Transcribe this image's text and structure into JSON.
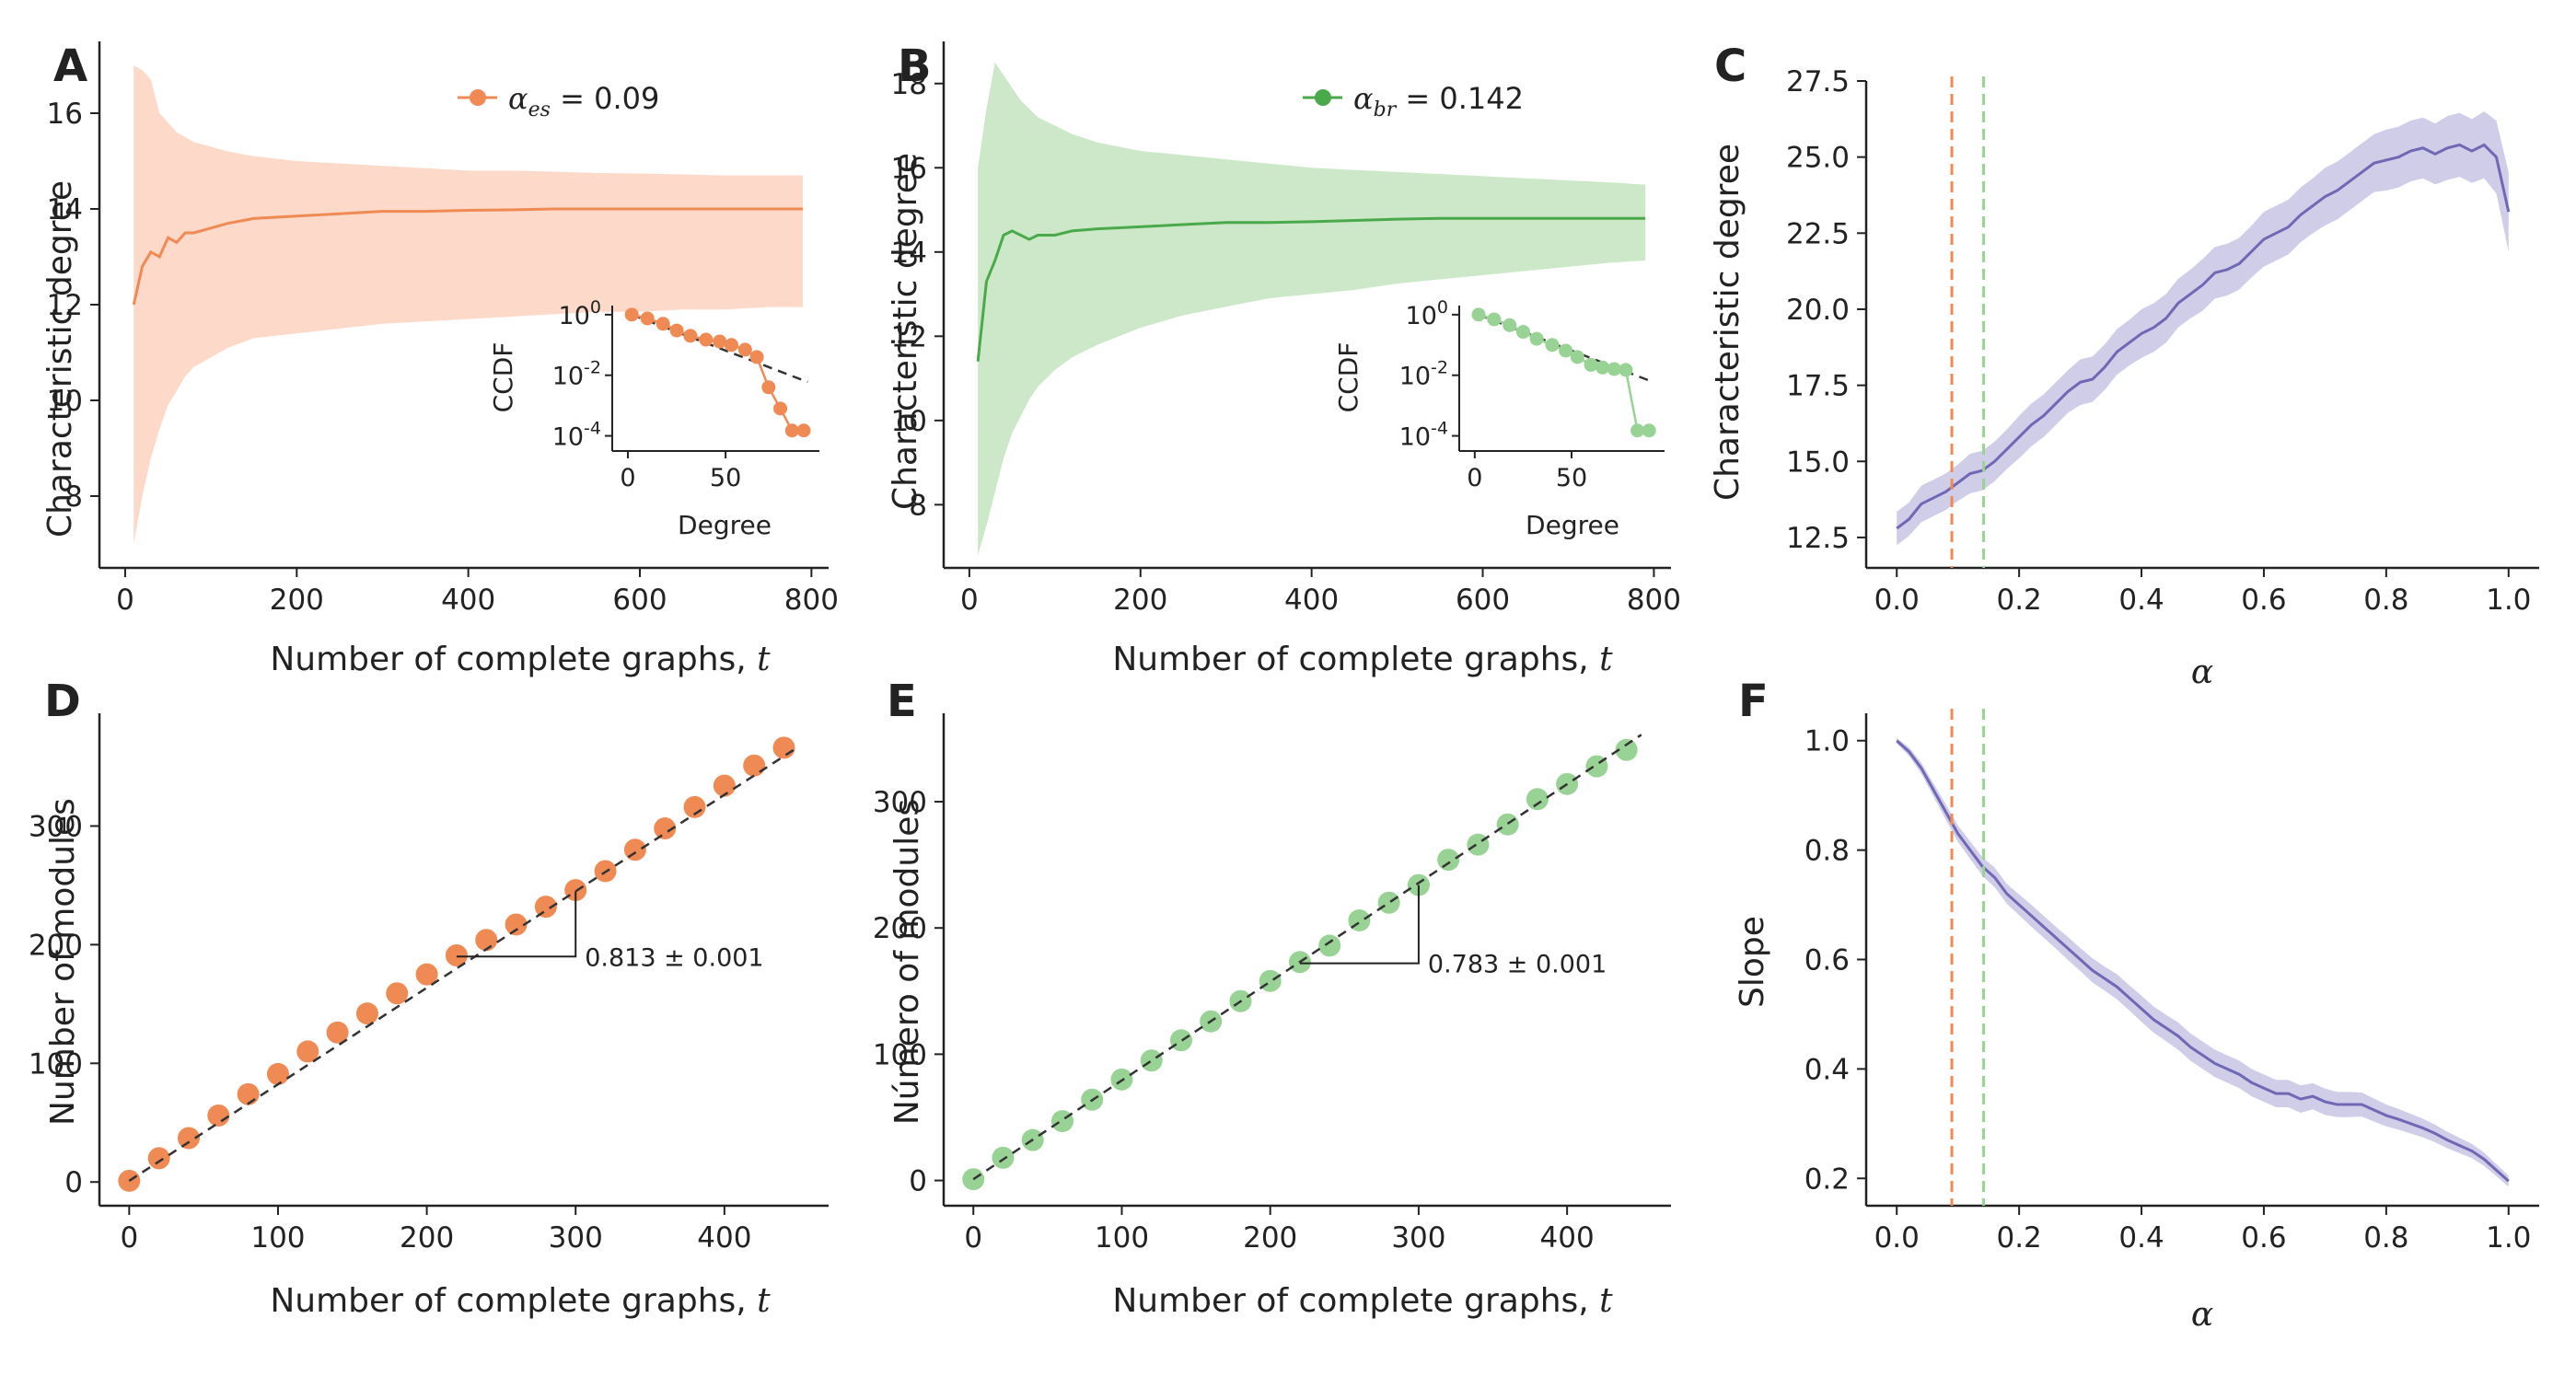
{
  "colors": {
    "orange": "#f08a55",
    "orange_band": "#fcd9c8",
    "green": "#4aa94a",
    "green_band": "#cde8c9",
    "green_light": "#98d294",
    "purple": "#7067b5",
    "purple_band": "#cfcde8",
    "axis": "#222222",
    "fit_line": "#333333"
  },
  "panels": {
    "A": {
      "letter": "A",
      "ylabel": "Characteristic degree",
      "xlabel_text": "Number of complete graphs, ",
      "xlabel_var": "t",
      "legend_symbol": "α",
      "legend_subscript": "es",
      "legend_value": " = 0.09",
      "inset": {
        "ylabel": "CCDF",
        "xlabel": "Degree"
      }
    },
    "B": {
      "letter": "B",
      "ylabel": "Characteristic degree",
      "xlabel_text": "Number of complete graphs, ",
      "xlabel_var": "t",
      "legend_symbol": "α",
      "legend_subscript": "br",
      "legend_value": " = 0.142",
      "inset": {
        "ylabel": "CCDF",
        "xlabel": "Degree"
      }
    },
    "C": {
      "letter": "C",
      "ylabel": "Characteristic degree",
      "xlabel": "α"
    },
    "D": {
      "letter": "D",
      "ylabel": "Number of modules",
      "xlabel_text": "Number of complete graphs, ",
      "xlabel_var": "t",
      "slope_label": "0.813 ± 0.001"
    },
    "E": {
      "letter": "E",
      "ylabel": "Número of modules",
      "xlabel_text": "Number of complete graphs, ",
      "xlabel_var": "t",
      "slope_label": "0.783 ± 0.001"
    },
    "F": {
      "letter": "F",
      "ylabel": "Slope",
      "xlabel": "α"
    }
  },
  "chart_data": [
    {
      "panel": "A",
      "type": "line",
      "xlim": [
        -30,
        820
      ],
      "ylim": [
        6.5,
        17.5
      ],
      "xticks": [
        0,
        200,
        400,
        600,
        800
      ],
      "yticks": [
        8,
        10,
        12,
        14,
        16
      ],
      "series": [
        {
          "name": "α_es = 0.09",
          "x": [
            10,
            20,
            30,
            40,
            50,
            60,
            70,
            80,
            100,
            120,
            150,
            200,
            250,
            300,
            350,
            400,
            450,
            500,
            550,
            600,
            650,
            700,
            750,
            790
          ],
          "y": [
            12.0,
            12.8,
            13.1,
            13.0,
            13.4,
            13.3,
            13.5,
            13.5,
            13.6,
            13.7,
            13.8,
            13.85,
            13.9,
            13.95,
            13.95,
            13.97,
            13.98,
            14.0,
            14.0,
            14.0,
            14.0,
            14.0,
            14.0,
            14.0
          ],
          "lower": [
            7.0,
            8.0,
            8.8,
            9.4,
            9.9,
            10.2,
            10.5,
            10.7,
            10.9,
            11.1,
            11.3,
            11.4,
            11.5,
            11.6,
            11.65,
            11.7,
            11.75,
            11.8,
            11.85,
            11.85,
            11.9,
            11.9,
            11.95,
            11.95
          ],
          "upper": [
            17.0,
            16.9,
            16.7,
            16.0,
            15.8,
            15.6,
            15.5,
            15.4,
            15.3,
            15.2,
            15.1,
            15.0,
            14.95,
            14.9,
            14.85,
            14.8,
            14.8,
            14.78,
            14.75,
            14.74,
            14.72,
            14.7,
            14.7,
            14.7
          ]
        }
      ],
      "inset": {
        "type": "scatter",
        "yscale": "log",
        "xticks": [
          0,
          50
        ],
        "ytick_labels": [
          "10^0",
          "10^-2",
          "10^-4"
        ],
        "x": [
          2,
          10,
          18,
          25,
          32,
          40,
          47,
          53,
          60,
          66,
          72,
          78,
          84,
          90
        ],
        "y": [
          1.0,
          0.75,
          0.5,
          0.3,
          0.2,
          0.15,
          0.13,
          0.1,
          0.07,
          0.04,
          0.004,
          0.0008,
          0.00015,
          0.00015
        ],
        "fit": {
          "x": [
            2,
            92
          ],
          "y": [
            1.0,
            0.006
          ]
        }
      }
    },
    {
      "panel": "B",
      "type": "line",
      "xlim": [
        -30,
        820
      ],
      "ylim": [
        6.5,
        19.0
      ],
      "xticks": [
        0,
        200,
        400,
        600,
        800
      ],
      "yticks": [
        8,
        10,
        12,
        14,
        16,
        18
      ],
      "series": [
        {
          "name": "α_br = 0.142",
          "x": [
            10,
            20,
            30,
            40,
            50,
            60,
            70,
            80,
            100,
            120,
            150,
            200,
            250,
            300,
            350,
            400,
            450,
            500,
            550,
            600,
            650,
            700,
            750,
            790
          ],
          "y": [
            11.4,
            13.3,
            13.8,
            14.4,
            14.5,
            14.4,
            14.3,
            14.4,
            14.4,
            14.5,
            14.55,
            14.6,
            14.65,
            14.7,
            14.7,
            14.72,
            14.75,
            14.78,
            14.8,
            14.8,
            14.8,
            14.8,
            14.8,
            14.8
          ],
          "lower": [
            6.8,
            7.5,
            8.3,
            9.1,
            9.7,
            10.1,
            10.5,
            10.8,
            11.2,
            11.5,
            11.8,
            12.2,
            12.5,
            12.7,
            12.9,
            13.0,
            13.1,
            13.25,
            13.35,
            13.45,
            13.55,
            13.65,
            13.75,
            13.8
          ],
          "upper": [
            16.0,
            17.4,
            18.5,
            18.2,
            17.9,
            17.6,
            17.4,
            17.2,
            17.0,
            16.8,
            16.6,
            16.4,
            16.3,
            16.2,
            16.1,
            16.0,
            15.95,
            15.9,
            15.85,
            15.8,
            15.75,
            15.7,
            15.65,
            15.6
          ]
        }
      ],
      "inset": {
        "type": "scatter",
        "yscale": "log",
        "xticks": [
          0,
          50
        ],
        "ytick_labels": [
          "10^0",
          "10^-2",
          "10^-4"
        ],
        "x": [
          2,
          10,
          18,
          25,
          32,
          40,
          47,
          53,
          60,
          66,
          72,
          78,
          84,
          90
        ],
        "y": [
          1.0,
          0.7,
          0.45,
          0.27,
          0.16,
          0.1,
          0.065,
          0.04,
          0.022,
          0.018,
          0.016,
          0.015,
          0.00015,
          0.00015
        ],
        "fit": {
          "x": [
            2,
            92
          ],
          "y": [
            1.0,
            0.006
          ]
        }
      }
    },
    {
      "panel": "C",
      "type": "line",
      "xlim": [
        -0.05,
        1.05
      ],
      "ylim": [
        11.5,
        27.5
      ],
      "xticks": [
        0.0,
        0.2,
        0.4,
        0.6,
        0.8,
        1.0
      ],
      "yticks": [
        12.5,
        15.0,
        17.5,
        20.0,
        22.5,
        25.0,
        27.5
      ],
      "vlines": [
        {
          "x": 0.09,
          "color": "orange"
        },
        {
          "x": 0.142,
          "color": "green"
        }
      ],
      "series": [
        {
          "x": [
            0.0,
            0.02,
            0.04,
            0.06,
            0.08,
            0.1,
            0.12,
            0.14,
            0.16,
            0.18,
            0.2,
            0.22,
            0.24,
            0.26,
            0.28,
            0.3,
            0.32,
            0.34,
            0.36,
            0.38,
            0.4,
            0.42,
            0.44,
            0.46,
            0.48,
            0.5,
            0.52,
            0.54,
            0.56,
            0.58,
            0.6,
            0.62,
            0.64,
            0.66,
            0.68,
            0.7,
            0.72,
            0.74,
            0.76,
            0.78,
            0.8,
            0.82,
            0.84,
            0.86,
            0.88,
            0.9,
            0.92,
            0.94,
            0.96,
            0.98,
            1.0
          ],
          "y": [
            12.8,
            13.1,
            13.6,
            13.8,
            14.0,
            14.3,
            14.6,
            14.7,
            15.0,
            15.4,
            15.8,
            16.2,
            16.5,
            16.9,
            17.3,
            17.6,
            17.7,
            18.1,
            18.6,
            18.9,
            19.2,
            19.4,
            19.7,
            20.2,
            20.5,
            20.8,
            21.2,
            21.3,
            21.5,
            21.9,
            22.3,
            22.5,
            22.7,
            23.1,
            23.4,
            23.7,
            23.9,
            24.2,
            24.5,
            24.8,
            24.9,
            25.0,
            25.2,
            25.3,
            25.1,
            25.3,
            25.4,
            25.2,
            25.4,
            25.0,
            23.2
          ],
          "band_halfwidth": [
            0.55,
            0.55,
            0.6,
            0.6,
            0.6,
            0.6,
            0.65,
            0.65,
            0.65,
            0.65,
            0.7,
            0.7,
            0.7,
            0.7,
            0.7,
            0.75,
            0.75,
            0.75,
            0.75,
            0.75,
            0.8,
            0.8,
            0.8,
            0.8,
            0.8,
            0.85,
            0.85,
            0.85,
            0.85,
            0.85,
            0.9,
            0.9,
            0.9,
            0.9,
            0.9,
            0.95,
            0.95,
            0.95,
            0.95,
            0.95,
            1.0,
            1.0,
            1.0,
            1.0,
            1.0,
            1.05,
            1.05,
            1.05,
            1.1,
            1.2,
            1.3
          ]
        }
      ]
    },
    {
      "panel": "D",
      "type": "scatter",
      "xlim": [
        -20,
        470
      ],
      "ylim": [
        -20,
        395
      ],
      "xticks": [
        0,
        100,
        200,
        300,
        400
      ],
      "yticks": [
        0,
        100,
        200,
        300
      ],
      "fit": {
        "x": [
          0,
          450
        ],
        "y": [
          1,
          367
        ]
      },
      "slope_triangle": {
        "x0": 220,
        "x1": 300,
        "y0": 190,
        "y1": 245
      },
      "series": [
        {
          "x": [
            0,
            20,
            40,
            60,
            80,
            100,
            120,
            140,
            160,
            180,
            200,
            220,
            240,
            260,
            280,
            300,
            320,
            340,
            360,
            380,
            400,
            420,
            440
          ],
          "y": [
            1,
            20,
            37,
            56,
            74,
            91,
            110,
            126,
            142,
            159,
            175,
            191,
            204,
            217,
            232,
            246,
            262,
            280,
            298,
            316,
            334,
            351,
            366
          ]
        }
      ]
    },
    {
      "panel": "E",
      "type": "scatter",
      "xlim": [
        -20,
        470
      ],
      "ylim": [
        -20,
        370
      ],
      "xticks": [
        0,
        100,
        200,
        300,
        400
      ],
      "yticks": [
        0,
        100,
        200,
        300
      ],
      "fit": {
        "x": [
          0,
          450
        ],
        "y": [
          1,
          353
        ]
      },
      "slope_triangle": {
        "x0": 220,
        "x1": 300,
        "y0": 172,
        "y1": 234
      },
      "series": [
        {
          "x": [
            0,
            20,
            40,
            60,
            80,
            100,
            120,
            140,
            160,
            180,
            200,
            220,
            240,
            260,
            280,
            300,
            320,
            340,
            360,
            380,
            400,
            420,
            440
          ],
          "y": [
            1,
            18,
            32,
            47,
            64,
            80,
            95,
            111,
            126,
            142,
            158,
            173,
            186,
            206,
            220,
            234,
            254,
            266,
            282,
            302,
            314,
            328,
            341
          ]
        }
      ]
    },
    {
      "panel": "F",
      "type": "line",
      "xlim": [
        -0.05,
        1.05
      ],
      "ylim": [
        0.15,
        1.05
      ],
      "xticks": [
        0.0,
        0.2,
        0.4,
        0.6,
        0.8,
        1.0
      ],
      "yticks": [
        0.2,
        0.4,
        0.6,
        0.8,
        1.0
      ],
      "vlines": [
        {
          "x": 0.09,
          "color": "orange"
        },
        {
          "x": 0.142,
          "color": "green"
        }
      ],
      "series": [
        {
          "x": [
            0.0,
            0.02,
            0.04,
            0.06,
            0.08,
            0.1,
            0.12,
            0.14,
            0.16,
            0.18,
            0.2,
            0.22,
            0.24,
            0.26,
            0.28,
            0.3,
            0.32,
            0.34,
            0.36,
            0.38,
            0.4,
            0.42,
            0.44,
            0.46,
            0.48,
            0.5,
            0.52,
            0.54,
            0.56,
            0.58,
            0.6,
            0.62,
            0.64,
            0.66,
            0.68,
            0.7,
            0.72,
            0.74,
            0.76,
            0.78,
            0.8,
            0.82,
            0.84,
            0.86,
            0.88,
            0.9,
            0.92,
            0.94,
            0.96,
            0.98,
            1.0
          ],
          "y": [
            1.0,
            0.98,
            0.95,
            0.91,
            0.87,
            0.83,
            0.8,
            0.77,
            0.75,
            0.72,
            0.7,
            0.68,
            0.66,
            0.64,
            0.62,
            0.6,
            0.58,
            0.565,
            0.55,
            0.53,
            0.51,
            0.49,
            0.475,
            0.46,
            0.44,
            0.425,
            0.41,
            0.4,
            0.39,
            0.375,
            0.365,
            0.355,
            0.355,
            0.345,
            0.35,
            0.34,
            0.335,
            0.335,
            0.335,
            0.325,
            0.315,
            0.308,
            0.3,
            0.292,
            0.282,
            0.27,
            0.26,
            0.25,
            0.235,
            0.215,
            0.195
          ],
          "band_halfwidth": [
            0.005,
            0.008,
            0.01,
            0.012,
            0.014,
            0.015,
            0.016,
            0.017,
            0.018,
            0.018,
            0.019,
            0.02,
            0.02,
            0.02,
            0.021,
            0.021,
            0.022,
            0.022,
            0.023,
            0.023,
            0.024,
            0.024,
            0.024,
            0.025,
            0.025,
            0.025,
            0.025,
            0.025,
            0.025,
            0.025,
            0.025,
            0.025,
            0.025,
            0.025,
            0.024,
            0.024,
            0.023,
            0.023,
            0.022,
            0.021,
            0.02,
            0.019,
            0.018,
            0.017,
            0.016,
            0.015,
            0.014,
            0.013,
            0.012,
            0.011,
            0.01
          ]
        }
      ]
    }
  ]
}
